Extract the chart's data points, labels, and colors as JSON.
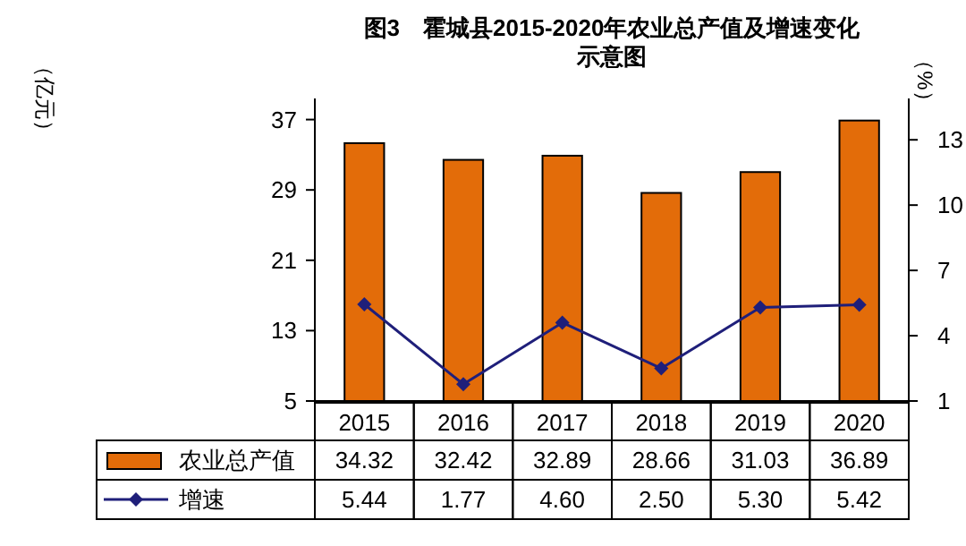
{
  "chart_data": {
    "type": "bar",
    "title": "图3　霍城县2015-2020年农业总产值及增速变化示意图",
    "annotations": [
      "（亿元）"
    ],
    "y2label": "（%）",
    "categories": [
      "2015",
      "2016",
      "2017",
      "2018",
      "2019",
      "2020"
    ],
    "series": [
      {
        "name": "农业总产值",
        "color": "#e36c09",
        "values": [
          34.32,
          32.42,
          32.89,
          28.66,
          31.03,
          36.89
        ],
        "value_labels": [
          "34.32",
          "32.42",
          "32.89",
          "28.66",
          "31.03",
          "36.89"
        ]
      },
      {
        "name": "增速",
        "type": "line",
        "axis": "y2",
        "color": "#1f1f7a",
        "marker": "diamond",
        "values": [
          5.44,
          1.77,
          4.6,
          2.5,
          5.3,
          5.42
        ],
        "value_labels": [
          "5.44",
          "1.77",
          "4.60",
          "2.50",
          "5.30",
          "5.42"
        ]
      }
    ],
    "ylim": [
      5,
      39.4
    ],
    "yticks": [
      5,
      13,
      21,
      29,
      37
    ],
    "y2lim": [
      1,
      14.9
    ],
    "y2ticks": [
      1,
      4,
      7,
      10,
      13
    ],
    "grid": false,
    "legend": "bottom"
  }
}
